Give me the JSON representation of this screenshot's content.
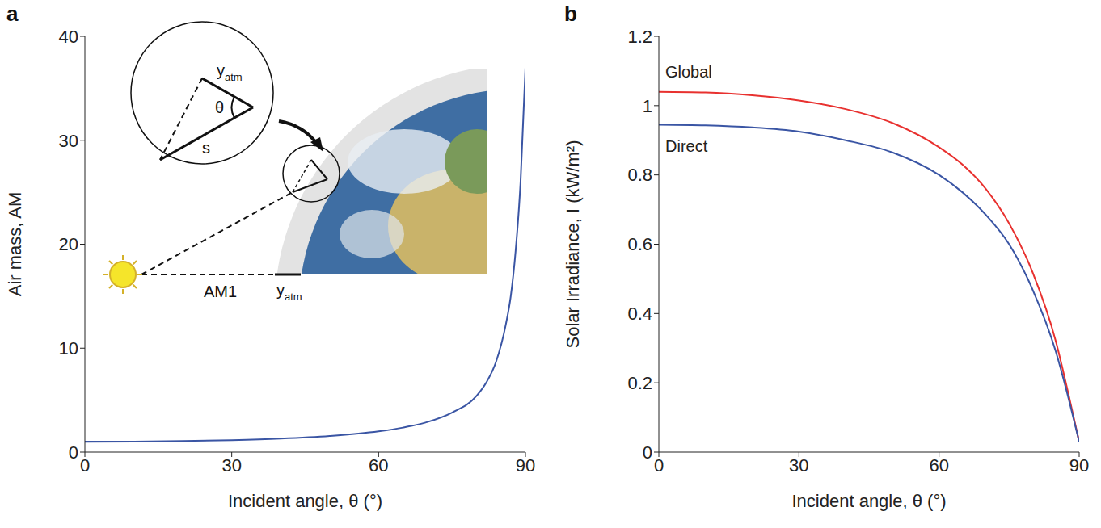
{
  "chart_data": [
    {
      "panel_label": "a",
      "type": "line",
      "x_label": "Incident angle, θ (°)",
      "y_label": "Air mass, AM",
      "x": [
        0,
        10,
        20,
        30,
        40,
        50,
        60,
        65,
        70,
        75,
        80,
        82,
        84,
        86,
        87,
        88,
        89,
        90
      ],
      "series": [
        {
          "color": "#3a55a4",
          "values": [
            1.0,
            1.015,
            1.064,
            1.155,
            1.305,
            1.555,
            1.995,
            2.36,
            2.9,
            3.8,
            5.4,
            6.7,
            8.7,
            12.3,
            15.0,
            19.4,
            26.0,
            37.0
          ]
        }
      ],
      "xlim": [
        0,
        90
      ],
      "xticks": [
        0,
        30,
        60,
        90
      ],
      "ylim": [
        0,
        40
      ],
      "yticks": [
        0,
        10,
        20,
        30,
        40
      ],
      "annotations": [
        {
          "text": "y",
          "subscript": "atm"
        },
        {
          "text": "θ"
        },
        {
          "text": "s"
        },
        {
          "text": "AM1"
        },
        {
          "text": "y",
          "subscript": "atm"
        }
      ]
    },
    {
      "panel_label": "b",
      "type": "line",
      "x_label": "Incident angle, θ (°)",
      "y_label": "Solar Irradiance, I (kW/m²)",
      "x": [
        0,
        10,
        20,
        30,
        40,
        50,
        60,
        65,
        70,
        75,
        80,
        85,
        88,
        90
      ],
      "series": [
        {
          "name": "Global",
          "color": "#e8312f",
          "values": [
            1.04,
            1.038,
            1.03,
            1.015,
            0.99,
            0.95,
            0.88,
            0.83,
            0.76,
            0.66,
            0.52,
            0.32,
            0.15,
            0.03
          ]
        },
        {
          "name": "Direct",
          "color": "#3a55a4",
          "values": [
            0.945,
            0.943,
            0.937,
            0.925,
            0.9,
            0.865,
            0.8,
            0.75,
            0.685,
            0.6,
            0.47,
            0.29,
            0.14,
            0.03
          ]
        }
      ],
      "xlim": [
        0,
        90
      ],
      "xticks": [
        0,
        30,
        60,
        90
      ],
      "ylim": [
        0,
        1.2
      ],
      "yticks": [
        0,
        0.2,
        0.4,
        0.6,
        0.8,
        1,
        1.2
      ]
    }
  ]
}
